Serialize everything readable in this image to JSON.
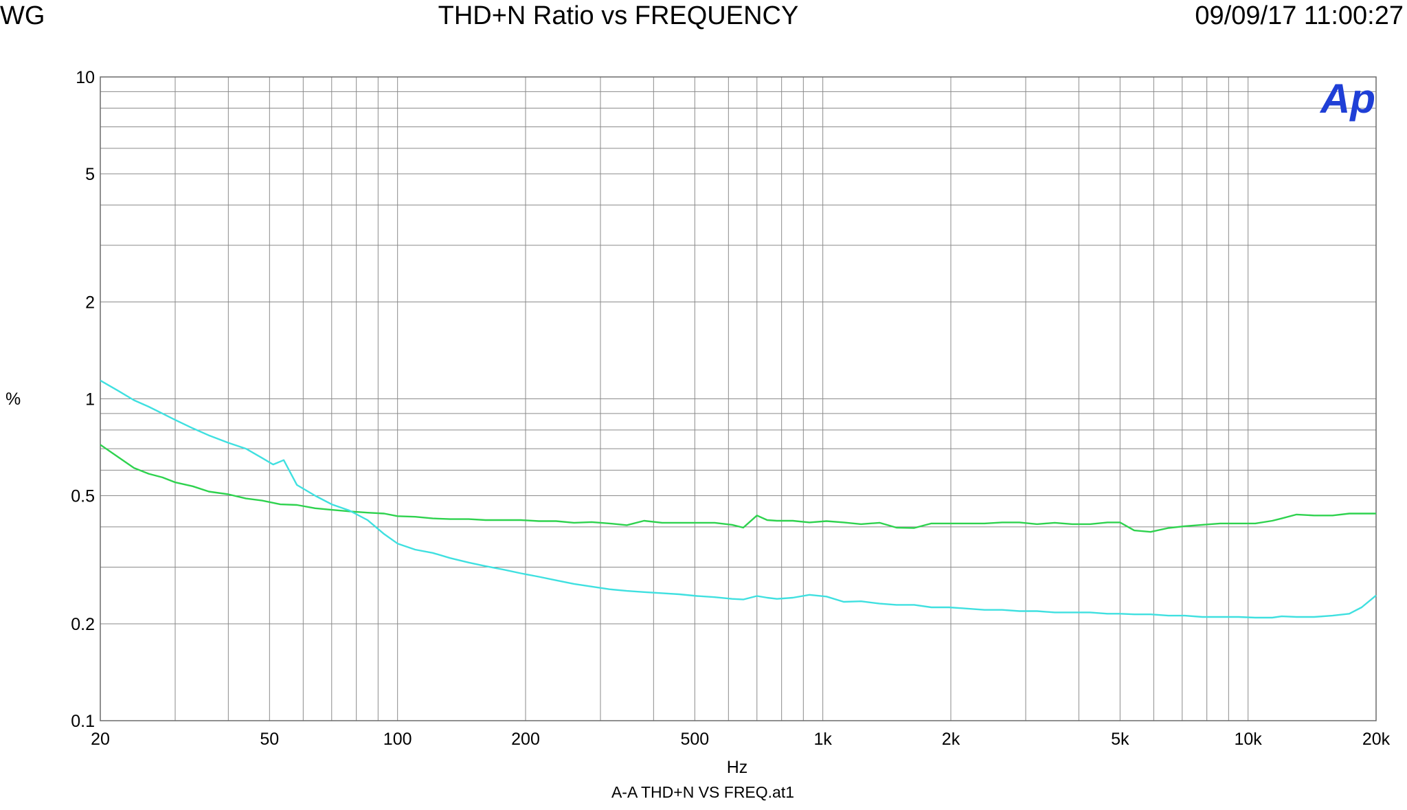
{
  "header": {
    "left": "WG",
    "title": "THD+N Ratio vs FREQUENCY",
    "timestamp": "09/09/17 11:00:27"
  },
  "logo": "Ap",
  "footer": "A-A THD+N VS FREQ.at1",
  "chart_data": {
    "type": "line",
    "x_scale": "log",
    "y_scale": "log",
    "xlim": [
      20,
      20000
    ],
    "ylim": [
      0.1,
      10
    ],
    "xlabel": "Hz",
    "ylabel": "%",
    "grid": true,
    "x_ticks": [
      {
        "value": 20,
        "label": "20"
      },
      {
        "value": 50,
        "label": "50"
      },
      {
        "value": 100,
        "label": "100"
      },
      {
        "value": 200,
        "label": "200"
      },
      {
        "value": 500,
        "label": "500"
      },
      {
        "value": 1000,
        "label": "1k"
      },
      {
        "value": 2000,
        "label": "2k"
      },
      {
        "value": 5000,
        "label": "5k"
      },
      {
        "value": 10000,
        "label": "10k"
      },
      {
        "value": 20000,
        "label": "20k"
      }
    ],
    "y_ticks": [
      {
        "value": 0.1,
        "label": "0.1"
      },
      {
        "value": 0.2,
        "label": "0.2"
      },
      {
        "value": 0.5,
        "label": "0.5"
      },
      {
        "value": 1,
        "label": "1"
      },
      {
        "value": 2,
        "label": "2"
      },
      {
        "value": 5,
        "label": "5"
      },
      {
        "value": 10,
        "label": "10"
      }
    ],
    "series": [
      {
        "color": "#2ed24e",
        "points": [
          [
            20,
            0.72
          ],
          [
            22,
            0.66
          ],
          [
            24,
            0.61
          ],
          [
            26,
            0.585
          ],
          [
            28,
            0.57
          ],
          [
            30,
            0.55
          ],
          [
            33,
            0.535
          ],
          [
            36,
            0.515
          ],
          [
            40,
            0.505
          ],
          [
            44,
            0.49
          ],
          [
            48,
            0.483
          ],
          [
            53,
            0.47
          ],
          [
            58,
            0.468
          ],
          [
            64,
            0.457
          ],
          [
            70,
            0.452
          ],
          [
            77,
            0.447
          ],
          [
            85,
            0.443
          ],
          [
            93,
            0.44
          ],
          [
            100,
            0.432
          ],
          [
            110,
            0.43
          ],
          [
            121,
            0.425
          ],
          [
            133,
            0.423
          ],
          [
            147,
            0.423
          ],
          [
            161,
            0.42
          ],
          [
            177,
            0.42
          ],
          [
            195,
            0.42
          ],
          [
            215,
            0.417
          ],
          [
            236,
            0.417
          ],
          [
            260,
            0.412
          ],
          [
            286,
            0.414
          ],
          [
            315,
            0.41
          ],
          [
            346,
            0.405
          ],
          [
            380,
            0.418
          ],
          [
            419,
            0.412
          ],
          [
            460,
            0.412
          ],
          [
            506,
            0.412
          ],
          [
            557,
            0.412
          ],
          [
            612,
            0.406
          ],
          [
            650,
            0.398
          ],
          [
            700,
            0.434
          ],
          [
            740,
            0.42
          ],
          [
            780,
            0.418
          ],
          [
            850,
            0.418
          ],
          [
            930,
            0.413
          ],
          [
            1020,
            0.417
          ],
          [
            1120,
            0.413
          ],
          [
            1230,
            0.408
          ],
          [
            1360,
            0.412
          ],
          [
            1490,
            0.398
          ],
          [
            1640,
            0.397
          ],
          [
            1800,
            0.41
          ],
          [
            1980,
            0.41
          ],
          [
            2180,
            0.41
          ],
          [
            2400,
            0.41
          ],
          [
            2640,
            0.413
          ],
          [
            2900,
            0.413
          ],
          [
            3190,
            0.408
          ],
          [
            3510,
            0.412
          ],
          [
            3860,
            0.408
          ],
          [
            4250,
            0.408
          ],
          [
            4670,
            0.413
          ],
          [
            5000,
            0.413
          ],
          [
            5400,
            0.39
          ],
          [
            5900,
            0.386
          ],
          [
            6500,
            0.397
          ],
          [
            7100,
            0.402
          ],
          [
            7800,
            0.406
          ],
          [
            8600,
            0.41
          ],
          [
            9500,
            0.41
          ],
          [
            10400,
            0.41
          ],
          [
            11400,
            0.418
          ],
          [
            12000,
            0.425
          ],
          [
            13000,
            0.437
          ],
          [
            14300,
            0.434
          ],
          [
            15800,
            0.434
          ],
          [
            17300,
            0.44
          ],
          [
            19000,
            0.44
          ],
          [
            20000,
            0.44
          ]
        ]
      },
      {
        "color": "#3fe0e0",
        "points": [
          [
            20,
            1.14
          ],
          [
            22,
            1.06
          ],
          [
            24,
            0.99
          ],
          [
            26,
            0.945
          ],
          [
            28,
            0.9
          ],
          [
            30,
            0.86
          ],
          [
            33,
            0.81
          ],
          [
            36,
            0.77
          ],
          [
            40,
            0.73
          ],
          [
            44,
            0.7
          ],
          [
            48,
            0.655
          ],
          [
            51,
            0.625
          ],
          [
            54,
            0.645
          ],
          [
            58,
            0.54
          ],
          [
            64,
            0.5
          ],
          [
            70,
            0.47
          ],
          [
            77,
            0.45
          ],
          [
            85,
            0.42
          ],
          [
            93,
            0.38
          ],
          [
            100,
            0.355
          ],
          [
            110,
            0.34
          ],
          [
            121,
            0.332
          ],
          [
            133,
            0.32
          ],
          [
            147,
            0.31
          ],
          [
            161,
            0.302
          ],
          [
            177,
            0.295
          ],
          [
            195,
            0.287
          ],
          [
            215,
            0.28
          ],
          [
            236,
            0.273
          ],
          [
            260,
            0.266
          ],
          [
            286,
            0.261
          ],
          [
            315,
            0.256
          ],
          [
            346,
            0.253
          ],
          [
            380,
            0.251
          ],
          [
            419,
            0.249
          ],
          [
            460,
            0.247
          ],
          [
            506,
            0.244
          ],
          [
            557,
            0.242
          ],
          [
            612,
            0.239
          ],
          [
            650,
            0.238
          ],
          [
            700,
            0.244
          ],
          [
            740,
            0.241
          ],
          [
            780,
            0.239
          ],
          [
            850,
            0.241
          ],
          [
            930,
            0.246
          ],
          [
            1020,
            0.243
          ],
          [
            1120,
            0.234
          ],
          [
            1230,
            0.235
          ],
          [
            1360,
            0.231
          ],
          [
            1490,
            0.229
          ],
          [
            1640,
            0.229
          ],
          [
            1800,
            0.225
          ],
          [
            1980,
            0.225
          ],
          [
            2180,
            0.223
          ],
          [
            2400,
            0.221
          ],
          [
            2640,
            0.221
          ],
          [
            2900,
            0.219
          ],
          [
            3190,
            0.219
          ],
          [
            3510,
            0.217
          ],
          [
            3860,
            0.217
          ],
          [
            4250,
            0.217
          ],
          [
            4670,
            0.215
          ],
          [
            5000,
            0.215
          ],
          [
            5400,
            0.214
          ],
          [
            5900,
            0.214
          ],
          [
            6500,
            0.212
          ],
          [
            7100,
            0.212
          ],
          [
            7800,
            0.21
          ],
          [
            8600,
            0.21
          ],
          [
            9500,
            0.21
          ],
          [
            10400,
            0.209
          ],
          [
            11400,
            0.209
          ],
          [
            12000,
            0.211
          ],
          [
            13000,
            0.21
          ],
          [
            14300,
            0.21
          ],
          [
            15800,
            0.212
          ],
          [
            17300,
            0.215
          ],
          [
            18500,
            0.225
          ],
          [
            20000,
            0.245
          ]
        ]
      }
    ]
  }
}
